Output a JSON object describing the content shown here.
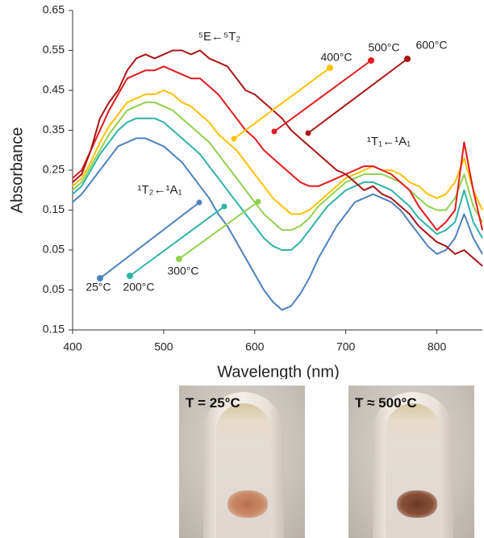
{
  "chart_data": {
    "type": "line",
    "xlabel": "Wavelength (nm)",
    "ylabel": "Absorbance",
    "x": [
      400,
      410,
      420,
      430,
      440,
      450,
      460,
      470,
      480,
      490,
      500,
      510,
      520,
      530,
      540,
      550,
      560,
      570,
      580,
      590,
      600,
      610,
      620,
      630,
      640,
      650,
      660,
      670,
      680,
      690,
      700,
      710,
      720,
      730,
      740,
      750,
      760,
      770,
      780,
      790,
      800,
      810,
      820,
      830,
      840,
      850
    ],
    "xlim": [
      400,
      850
    ],
    "xticks": [
      400,
      500,
      600,
      700,
      800
    ],
    "ylim": [
      -0.15,
      0.65
    ],
    "yticks": [
      {
        "value": -0.15,
        "label": "0.15"
      },
      {
        "value": -0.05,
        "label": "0.05"
      },
      0.05,
      0.15,
      0.25,
      0.35,
      0.45,
      0.55,
      0.65
    ],
    "grid": false,
    "series": [
      {
        "name": "25°C",
        "color": "#4f81bd",
        "values": [
          0.17,
          0.19,
          0.22,
          0.25,
          0.28,
          0.31,
          0.32,
          0.33,
          0.33,
          0.32,
          0.31,
          0.29,
          0.27,
          0.24,
          0.21,
          0.18,
          0.14,
          0.11,
          0.07,
          0.03,
          -0.01,
          -0.05,
          -0.08,
          -0.1,
          -0.09,
          -0.06,
          -0.02,
          0.03,
          0.07,
          0.11,
          0.14,
          0.17,
          0.18,
          0.19,
          0.18,
          0.17,
          0.15,
          0.12,
          0.09,
          0.06,
          0.04,
          0.05,
          0.08,
          0.14,
          0.08,
          0.04
        ]
      },
      {
        "name": "200°C",
        "color": "#2fb3a6",
        "values": [
          0.19,
          0.21,
          0.25,
          0.29,
          0.32,
          0.35,
          0.37,
          0.38,
          0.38,
          0.38,
          0.37,
          0.35,
          0.33,
          0.31,
          0.29,
          0.26,
          0.23,
          0.2,
          0.17,
          0.14,
          0.11,
          0.08,
          0.06,
          0.05,
          0.05,
          0.07,
          0.1,
          0.13,
          0.16,
          0.18,
          0.2,
          0.21,
          0.22,
          0.22,
          0.21,
          0.2,
          0.18,
          0.16,
          0.13,
          0.11,
          0.09,
          0.1,
          0.12,
          0.2,
          0.12,
          0.08
        ]
      },
      {
        "name": "300°C",
        "color": "#92d050",
        "values": [
          0.2,
          0.22,
          0.26,
          0.3,
          0.34,
          0.37,
          0.4,
          0.41,
          0.42,
          0.42,
          0.41,
          0.4,
          0.38,
          0.36,
          0.34,
          0.32,
          0.29,
          0.26,
          0.23,
          0.2,
          0.17,
          0.14,
          0.12,
          0.1,
          0.1,
          0.11,
          0.13,
          0.16,
          0.18,
          0.2,
          0.22,
          0.23,
          0.24,
          0.24,
          0.24,
          0.23,
          0.22,
          0.2,
          0.18,
          0.16,
          0.15,
          0.15,
          0.18,
          0.24,
          0.16,
          0.12
        ]
      },
      {
        "name": "400°C",
        "color": "#ffc000",
        "values": [
          0.21,
          0.23,
          0.27,
          0.32,
          0.36,
          0.39,
          0.42,
          0.43,
          0.44,
          0.44,
          0.45,
          0.44,
          0.42,
          0.41,
          0.39,
          0.37,
          0.34,
          0.32,
          0.3,
          0.27,
          0.24,
          0.21,
          0.18,
          0.16,
          0.14,
          0.14,
          0.15,
          0.17,
          0.19,
          0.21,
          0.23,
          0.24,
          0.25,
          0.26,
          0.25,
          0.25,
          0.24,
          0.22,
          0.21,
          0.19,
          0.18,
          0.19,
          0.22,
          0.28,
          0.2,
          0.15
        ]
      },
      {
        "name": "500°C",
        "color": "#e31a1c",
        "values": [
          0.23,
          0.25,
          0.3,
          0.35,
          0.4,
          0.44,
          0.48,
          0.49,
          0.5,
          0.5,
          0.51,
          0.5,
          0.49,
          0.48,
          0.48,
          0.46,
          0.44,
          0.41,
          0.38,
          0.35,
          0.33,
          0.3,
          0.28,
          0.26,
          0.24,
          0.22,
          0.21,
          0.21,
          0.22,
          0.23,
          0.24,
          0.25,
          0.26,
          0.26,
          0.25,
          0.24,
          0.22,
          0.2,
          0.16,
          0.13,
          0.1,
          0.12,
          0.15,
          0.32,
          0.2,
          0.1
        ]
      },
      {
        "name": "600°C",
        "color": "#a81515",
        "values": [
          0.22,
          0.24,
          0.3,
          0.38,
          0.42,
          0.45,
          0.5,
          0.53,
          0.54,
          0.53,
          0.54,
          0.55,
          0.55,
          0.54,
          0.55,
          0.53,
          0.52,
          0.51,
          0.48,
          0.45,
          0.44,
          0.42,
          0.4,
          0.38,
          0.35,
          0.33,
          0.31,
          0.29,
          0.27,
          0.25,
          0.24,
          0.22,
          0.2,
          0.21,
          0.19,
          0.18,
          0.16,
          0.14,
          0.11,
          0.09,
          0.07,
          0.06,
          0.04,
          0.05,
          0.03,
          0.01
        ]
      }
    ],
    "annotations": [
      {
        "text": "⁵E←⁵T₂"
      },
      {
        "text": "¹T₁←¹A₁"
      },
      {
        "text": "¹T₂←¹A₁"
      }
    ]
  },
  "photos": [
    {
      "label": "T = 25°C"
    },
    {
      "label": "T ≈ 500°C"
    }
  ]
}
